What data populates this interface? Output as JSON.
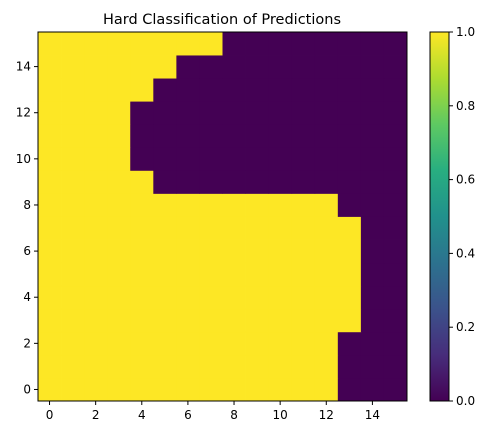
{
  "chart_data": {
    "type": "heatmap",
    "title": "Hard Classification of Predictions",
    "xlabel": "",
    "ylabel": "",
    "x_range": [
      -0.5,
      15.5
    ],
    "y_range": [
      -0.5,
      15.5
    ],
    "x_ticks": [
      0,
      2,
      4,
      6,
      8,
      10,
      12,
      14
    ],
    "y_ticks": [
      0,
      2,
      4,
      6,
      8,
      10,
      12,
      14
    ],
    "colormap": "viridis",
    "colorbar": {
      "range": [
        0.0,
        1.0
      ],
      "ticks": [
        "0.0",
        "0.2",
        "0.4",
        "0.6",
        "0.8",
        "1.0"
      ]
    },
    "colors": {
      "low": "#440154",
      "high": "#fde725"
    },
    "origin": "lower",
    "grid": false,
    "rows_bottom_to_top": [
      [
        1,
        1,
        1,
        1,
        1,
        1,
        1,
        1,
        1,
        1,
        1,
        1,
        1,
        0,
        0,
        0
      ],
      [
        1,
        1,
        1,
        1,
        1,
        1,
        1,
        1,
        1,
        1,
        1,
        1,
        1,
        0,
        0,
        0
      ],
      [
        1,
        1,
        1,
        1,
        1,
        1,
        1,
        1,
        1,
        1,
        1,
        1,
        1,
        0,
        0,
        0
      ],
      [
        1,
        1,
        1,
        1,
        1,
        1,
        1,
        1,
        1,
        1,
        1,
        1,
        1,
        1,
        0,
        0
      ],
      [
        1,
        1,
        1,
        1,
        1,
        1,
        1,
        1,
        1,
        1,
        1,
        1,
        1,
        1,
        0,
        0
      ],
      [
        1,
        1,
        1,
        1,
        1,
        1,
        1,
        1,
        1,
        1,
        1,
        1,
        1,
        1,
        0,
        0
      ],
      [
        1,
        1,
        1,
        1,
        1,
        1,
        1,
        1,
        1,
        1,
        1,
        1,
        1,
        1,
        0,
        0
      ],
      [
        1,
        1,
        1,
        1,
        1,
        1,
        1,
        1,
        1,
        1,
        1,
        1,
        1,
        1,
        0,
        0
      ],
      [
        1,
        1,
        1,
        1,
        1,
        1,
        1,
        1,
        1,
        1,
        1,
        1,
        1,
        0,
        0,
        0
      ],
      [
        1,
        1,
        1,
        1,
        1,
        0,
        0,
        0,
        0,
        0,
        0,
        0,
        0,
        0,
        0,
        0
      ],
      [
        1,
        1,
        1,
        1,
        0,
        0,
        0,
        0,
        0,
        0,
        0,
        0,
        0,
        0,
        0,
        0
      ],
      [
        1,
        1,
        1,
        1,
        0,
        0,
        0,
        0,
        0,
        0,
        0,
        0,
        0,
        0,
        0,
        0
      ],
      [
        1,
        1,
        1,
        1,
        0,
        0,
        0,
        0,
        0,
        0,
        0,
        0,
        0,
        0,
        0,
        0
      ],
      [
        1,
        1,
        1,
        1,
        1,
        0,
        0,
        0,
        0,
        0,
        0,
        0,
        0,
        0,
        0,
        0
      ],
      [
        1,
        1,
        1,
        1,
        1,
        1,
        0,
        0,
        0,
        0,
        0,
        0,
        0,
        0,
        0,
        0
      ],
      [
        1,
        1,
        1,
        1,
        1,
        1,
        1,
        1,
        0,
        0,
        0,
        0,
        0,
        0,
        0,
        0
      ]
    ]
  }
}
